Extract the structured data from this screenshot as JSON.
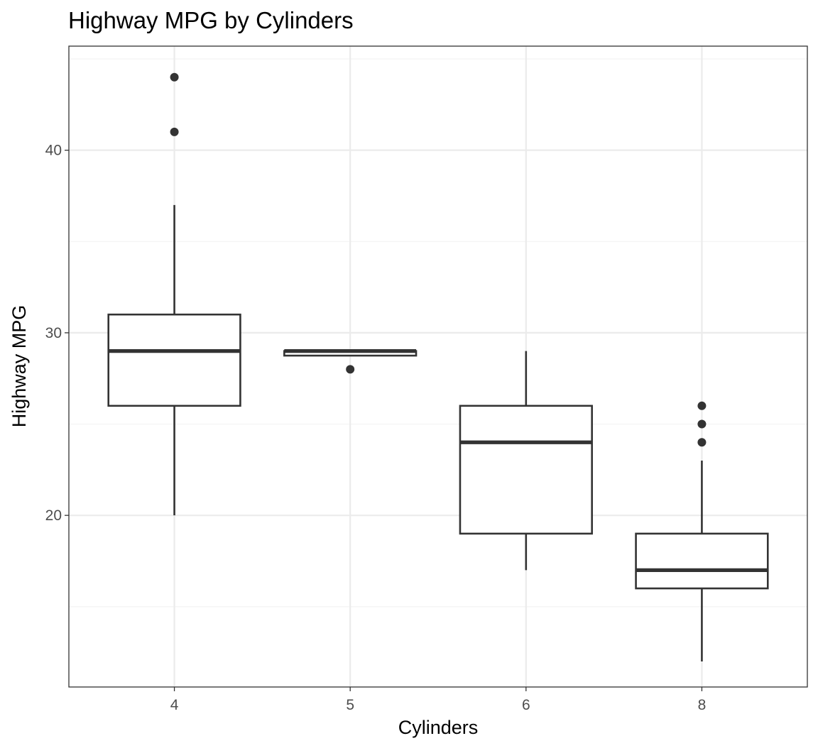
{
  "chart_data": {
    "type": "boxplot",
    "title": "Highway MPG by Cylinders",
    "xlabel": "Cylinders",
    "ylabel": "Highway MPG",
    "categories": [
      "4",
      "5",
      "6",
      "8"
    ],
    "y_ticks": [
      20,
      30,
      40
    ],
    "ylim": [
      10.6,
      45.7
    ],
    "grid": true,
    "legend": "none",
    "boxes": [
      {
        "category": "4",
        "whisker_low": 20,
        "q1": 26,
        "median": 29,
        "q3": 31,
        "whisker_high": 37,
        "outliers": [
          41,
          44
        ]
      },
      {
        "category": "5",
        "whisker_low": 28.75,
        "q1": 28.75,
        "median": 29,
        "q3": 29,
        "whisker_high": 29,
        "outliers": [
          28
        ]
      },
      {
        "category": "6",
        "whisker_low": 17,
        "q1": 19,
        "median": 24,
        "q3": 26,
        "whisker_high": 29,
        "outliers": []
      },
      {
        "category": "8",
        "whisker_low": 12,
        "q1": 16,
        "median": 17,
        "q3": 19,
        "whisker_high": 23,
        "outliers": [
          24,
          25,
          26
        ]
      }
    ],
    "colors": {
      "panel_border": "#333333",
      "grid_major": "#ebebeb",
      "grid_minor": "#f2f2f2",
      "box_line": "#333333",
      "box_fill": "#ffffff",
      "tick_text": "#4d4d4d"
    }
  }
}
